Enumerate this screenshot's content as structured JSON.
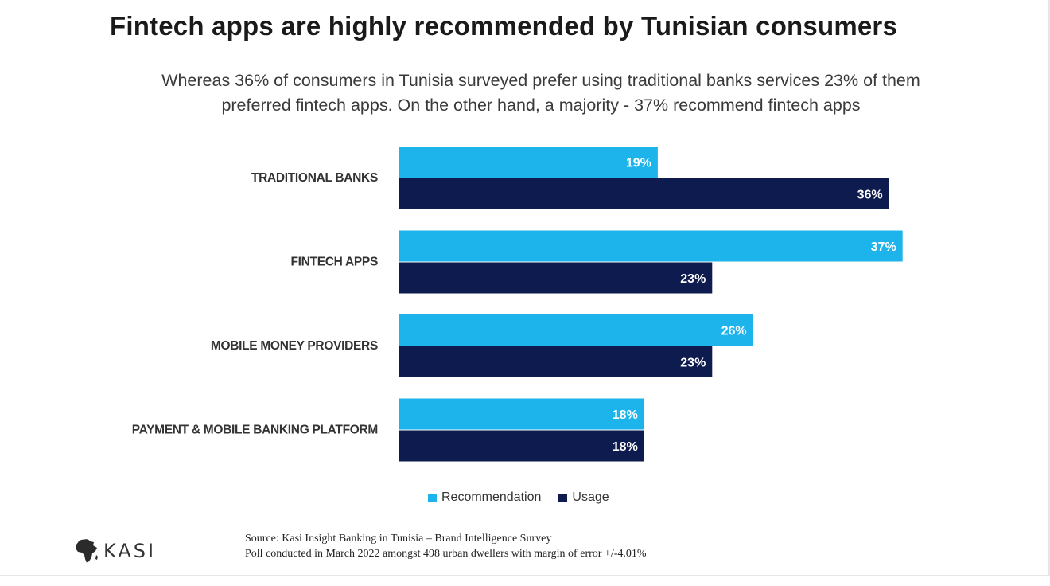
{
  "title": "Fintech apps are highly recommended by Tunisian consumers",
  "subtitle_line1": "Whereas 36% of consumers in Tunisia surveyed prefer using traditional banks services 23% of them",
  "subtitle_line2": "preferred fintech apps. On the other hand, a majority - 37% recommend fintech apps",
  "chart_data": {
    "type": "bar",
    "orientation": "horizontal",
    "categories": [
      "TRADITIONAL BANKS",
      "FINTECH APPS",
      "MOBILE MONEY PROVIDERS",
      "PAYMENT & MOBILE BANKING PLATFORM"
    ],
    "series": [
      {
        "name": "Recommendation",
        "values": [
          19,
          37,
          26,
          18
        ],
        "labels": [
          "19%",
          "37%",
          "26%",
          "18%"
        ],
        "color": "#1cb4ea"
      },
      {
        "name": "Usage",
        "values": [
          36,
          23,
          23,
          18
        ],
        "labels": [
          "36%",
          "23%",
          "23%",
          "18%"
        ],
        "color": "#0d1b4f"
      }
    ],
    "value_unit": "%",
    "grid": false,
    "legend": "bottom"
  },
  "legend": {
    "recommendation": "Recommendation",
    "usage": "Usage"
  },
  "logo": {
    "text": "KASI",
    "icon": "africa-map-icon"
  },
  "source": {
    "line1": "Source: Kasi Insight Banking in Tunisia – Brand Intelligence Survey",
    "line2": "Poll conducted in March 2022 amongst 498 urban dwellers with margin of error +/-4.01%"
  }
}
